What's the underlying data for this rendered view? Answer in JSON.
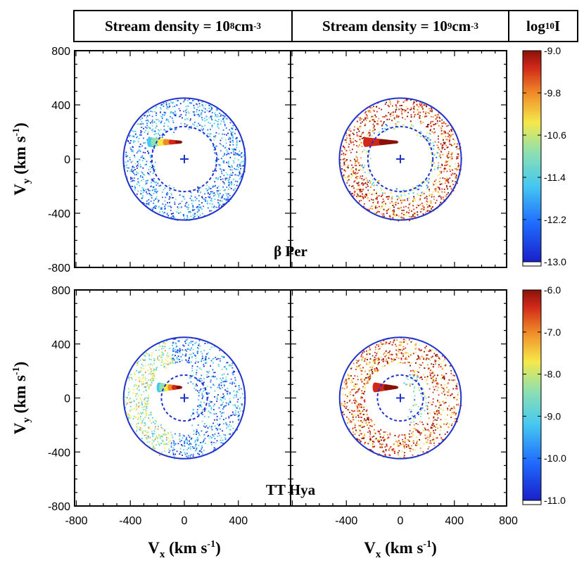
{
  "header": {
    "left_prefix": "Stream density = 10",
    "left_exp": "8",
    "left_unit": " cm",
    "left_unit_exp": "-3",
    "right_prefix": "Stream density = 10",
    "right_exp": "9",
    "right_unit": " cm",
    "right_unit_exp": "-3",
    "cbar_prefix": "log",
    "cbar_sub": "10",
    "cbar_suffix": " I"
  },
  "axes": {
    "xlabel_main": "V",
    "xlabel_sub": "x",
    "xlabel_unit": " (km s",
    "xlabel_unit_exp": "-1",
    "xlabel_close": ")",
    "ylabel_main": "V",
    "ylabel_sub": "y",
    "ylabel_unit": "(km s",
    "ylabel_unit_exp": "-1",
    "ylabel_close": ")"
  },
  "chart_data": [
    {
      "type": "scatter",
      "title": "β Per",
      "panels": [
        "Stream density = 10^8 cm^-3",
        "Stream density = 10^9 cm^-3"
      ],
      "xlim": [
        -800,
        800
      ],
      "ylim": [
        -800,
        800
      ],
      "x_ticks_left": [],
      "x_ticks_right": [],
      "y_ticks": [
        800,
        400,
        0,
        -400,
        -800
      ],
      "outer_circle_radius": 450,
      "inner_circle_radius": 240,
      "stream": {
        "x_start": -260,
        "x_end": -30,
        "y": 125
      },
      "center_marker": [
        0,
        0
      ],
      "colorbar": {
        "min": -13.0,
        "max": -9.0,
        "ticks": [
          -9.0,
          -9.8,
          -10.6,
          -11.4,
          -12.2,
          -13.0
        ]
      }
    },
    {
      "type": "scatter",
      "title": "TT Hya",
      "panels": [
        "Stream density = 10^8 cm^-3",
        "Stream density = 10^9 cm^-3"
      ],
      "xlim": [
        -800,
        800
      ],
      "ylim": [
        -800,
        800
      ],
      "x_ticks_left": [
        -800,
        -400,
        0,
        400
      ],
      "x_ticks_right": [
        -400,
        0,
        400,
        800
      ],
      "y_ticks": [
        800,
        400,
        0,
        -400,
        -800
      ],
      "outer_circle_radius": 450,
      "inner_circle_radius": 170,
      "stream": {
        "x_start": -190,
        "x_end": -30,
        "y": 78
      },
      "center_marker": [
        0,
        0
      ],
      "colorbar": {
        "min": -11.0,
        "max": -6.0,
        "ticks": [
          -6.0,
          -7.0,
          -8.0,
          -9.0,
          -10.0,
          -11.0
        ]
      }
    }
  ]
}
